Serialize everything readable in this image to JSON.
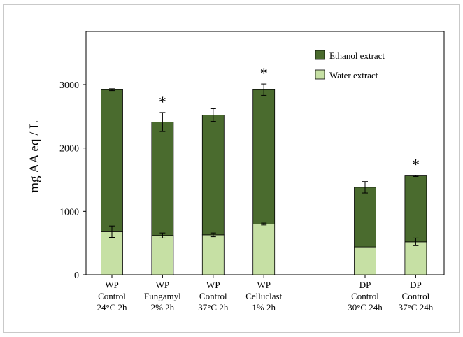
{
  "chart_data": {
    "type": "bar",
    "stacked": true,
    "ylabel": "mg AA eq / L",
    "ylim": [
      0,
      3000
    ],
    "yticks": [
      0,
      1000,
      2000,
      3000
    ],
    "categories": [
      {
        "lines": [
          "WP",
          "Control",
          "24°C  2h"
        ],
        "slot": 0
      },
      {
        "lines": [
          "WP",
          "Fungamyl",
          "2%  2h"
        ],
        "slot": 1
      },
      {
        "lines": [
          "WP",
          "Control",
          "37°C  2h"
        ],
        "slot": 2
      },
      {
        "lines": [
          "WP",
          "Celluclast",
          "1%  2h"
        ],
        "slot": 3
      },
      {
        "lines": [
          "DP",
          "Control",
          "30°C 24h"
        ],
        "slot": 5
      },
      {
        "lines": [
          "DP",
          "Control",
          "37°C 24h"
        ],
        "slot": 6
      }
    ],
    "series": [
      {
        "name": "Water extract",
        "color": "#c6e0a4",
        "values": [
          680,
          620,
          630,
          800,
          440,
          520
        ],
        "errors": [
          90,
          40,
          30,
          15,
          0,
          60
        ]
      },
      {
        "name": "Ethanol extract",
        "color": "#4a6b2e",
        "values": [
          2240,
          1790,
          1890,
          2120,
          940,
          1040
        ],
        "errors": [
          15,
          150,
          100,
          90,
          90,
          10
        ]
      }
    ],
    "significance_marks": [
      {
        "category_index": 1,
        "text": "*"
      },
      {
        "category_index": 3,
        "text": "*"
      },
      {
        "category_index": 5,
        "text": "*"
      }
    ],
    "legend": {
      "position": "top-right",
      "order": [
        "Ethanol extract",
        "Water extract"
      ]
    },
    "grid": false
  }
}
